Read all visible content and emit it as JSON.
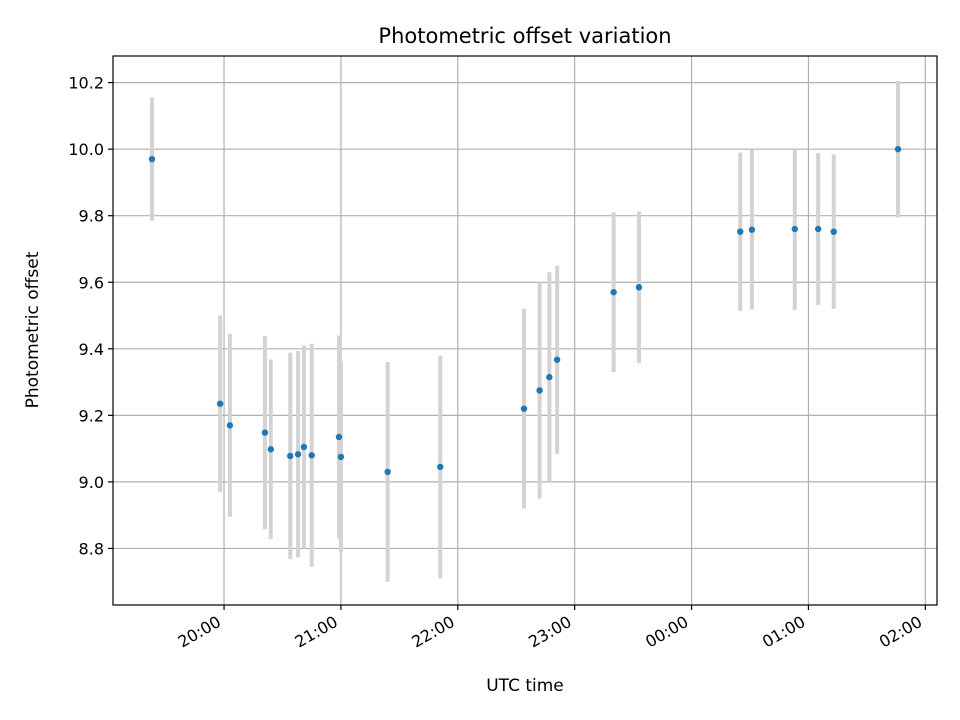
{
  "chart_data": {
    "type": "scatter",
    "title": "Photometric offset variation",
    "xlabel": "UTC time",
    "ylabel": "Photometric offset",
    "x_ticks": [
      "20:00",
      "21:00",
      "22:00",
      "23:00",
      "00:00",
      "01:00",
      "02:00"
    ],
    "y_ticks": [
      "8.8",
      "9.0",
      "9.2",
      "9.4",
      "9.6",
      "9.8",
      "10.0",
      "10.2"
    ],
    "xlim": [
      "19:03",
      "02:06"
    ],
    "ylim": [
      8.63,
      10.28
    ],
    "grid": true,
    "colors": {
      "marker": "#1f77b4",
      "errorbar": "#d3d3d3",
      "grid": "#b0b0b0"
    },
    "points": [
      {
        "time": "19:23",
        "y": 9.97,
        "err": 0.185
      },
      {
        "time": "19:58",
        "y": 9.235,
        "err": 0.265
      },
      {
        "time": "20:03",
        "y": 9.17,
        "err": 0.275
      },
      {
        "time": "20:21",
        "y": 9.148,
        "err": 0.29
      },
      {
        "time": "20:24",
        "y": 9.098,
        "err": 0.27
      },
      {
        "time": "20:34",
        "y": 9.078,
        "err": 0.31
      },
      {
        "time": "20:38",
        "y": 9.083,
        "err": 0.31
      },
      {
        "time": "20:41",
        "y": 9.105,
        "err": 0.305
      },
      {
        "time": "20:45",
        "y": 9.08,
        "err": 0.335
      },
      {
        "time": "20:59",
        "y": 9.135,
        "err": 0.305
      },
      {
        "time": "21:00",
        "y": 9.075,
        "err": 0.285
      },
      {
        "time": "21:24",
        "y": 9.03,
        "err": 0.33
      },
      {
        "time": "21:51",
        "y": 9.045,
        "err": 0.335
      },
      {
        "time": "22:34",
        "y": 9.22,
        "err": 0.3
      },
      {
        "time": "22:42",
        "y": 9.275,
        "err": 0.325
      },
      {
        "time": "22:47",
        "y": 9.315,
        "err": 0.315
      },
      {
        "time": "22:51",
        "y": 9.367,
        "err": 0.283
      },
      {
        "time": "23:20",
        "y": 9.57,
        "err": 0.24
      },
      {
        "time": "23:33",
        "y": 9.585,
        "err": 0.228
      },
      {
        "time": "00:25",
        "y": 9.752,
        "err": 0.238
      },
      {
        "time": "00:31",
        "y": 9.758,
        "err": 0.24
      },
      {
        "time": "00:53",
        "y": 9.76,
        "err": 0.243
      },
      {
        "time": "01:05",
        "y": 9.76,
        "err": 0.228
      },
      {
        "time": "01:13",
        "y": 9.752,
        "err": 0.232
      },
      {
        "time": "01:46",
        "y": 10.0,
        "err": 0.205
      }
    ]
  }
}
